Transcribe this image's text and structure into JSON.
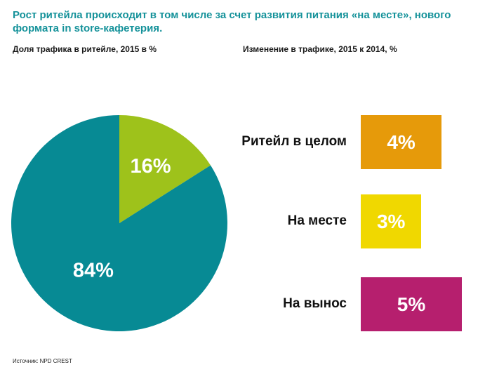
{
  "header": {
    "title": "Рост ритейла происходит в том числе за счет развития питания «на месте», нового формата in store-кафетерия.",
    "subtitle_left": "Доля трафика в ритейле, 2015 в %",
    "subtitle_right": "Изменение в трафике, 2015 к 2014, %"
  },
  "footer": {
    "source": "Источник: NPD CREST"
  },
  "chart_data": [
    {
      "type": "pie",
      "title": "Доля трафика в ритейле, 2015 в %",
      "slices": [
        {
          "label": "16%",
          "value": 16,
          "color": "#9ec21b"
        },
        {
          "label": "84%",
          "value": 84,
          "color": "#078a94"
        }
      ]
    },
    {
      "type": "bar",
      "orientation": "horizontal",
      "title": "Изменение в трафике, 2015 к 2014, %",
      "categories": [
        "Ритейл в целом",
        "На месте",
        "На вынос"
      ],
      "values": [
        4,
        3,
        5
      ],
      "value_labels": [
        "4%",
        "3%",
        "5%"
      ],
      "colors": [
        "#e69a0a",
        "#f0d800",
        "#b61f6e"
      ]
    }
  ]
}
